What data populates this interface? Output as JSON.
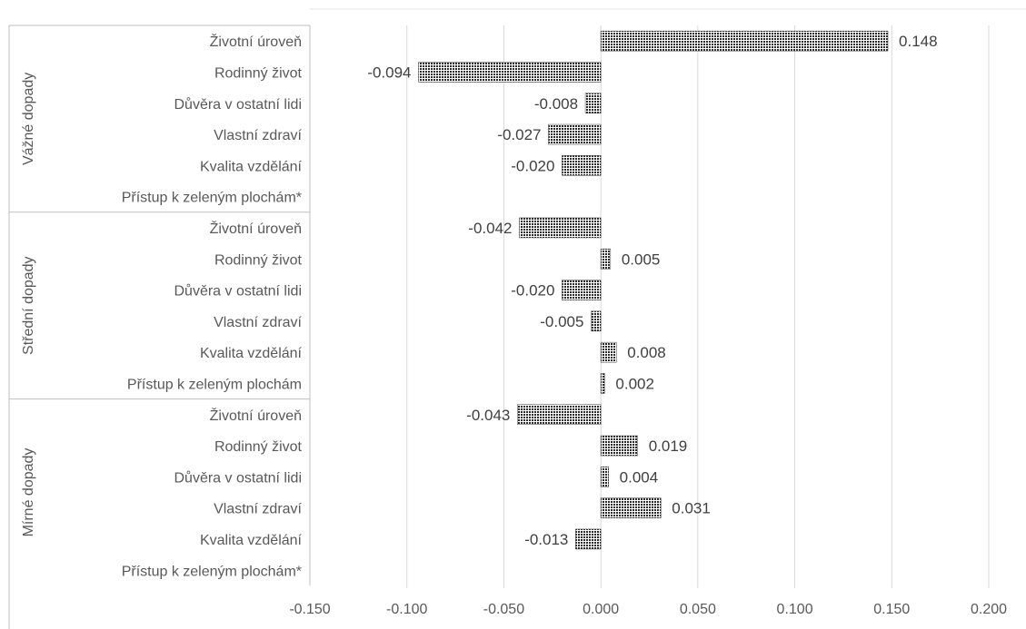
{
  "chart_data": {
    "type": "bar",
    "orientation": "horizontal",
    "groups": [
      {
        "name": "Vážné dopady",
        "categories": [
          "Životní úroveň",
          "Rodinný život",
          "Důvěra v ostatní lidi",
          "Vlastní zdraví",
          "Kvalita vzdělání",
          "Přístup k zeleným plochám*"
        ],
        "values": [
          0.148,
          -0.094,
          -0.008,
          -0.027,
          -0.02,
          null
        ],
        "labels": [
          "0.148",
          "-0.094",
          "-0.008",
          "-0.027",
          "-0.020",
          ""
        ]
      },
      {
        "name": "Střední dopady",
        "categories": [
          "Životní úroveň",
          "Rodinný život",
          "Důvěra v ostatní lidi",
          "Vlastní zdraví",
          "Kvalita vzdělání",
          "Přístup k zeleným plochám"
        ],
        "values": [
          -0.042,
          0.005,
          -0.02,
          -0.005,
          0.008,
          0.002
        ],
        "labels": [
          "-0.042",
          "0.005",
          "-0.020",
          "-0.005",
          "0.008",
          "0.002"
        ]
      },
      {
        "name": "Mírné dopady",
        "categories": [
          "Životní úroveň",
          "Rodinný život",
          "Důvěra v ostatní lidi",
          "Vlastní zdraví",
          "Kvalita vzdělání",
          "Přístup k zeleným plochám*"
        ],
        "values": [
          -0.043,
          0.019,
          0.004,
          0.031,
          -0.013,
          null
        ],
        "labels": [
          "-0.043",
          "0.019",
          "0.004",
          "0.031",
          "-0.013",
          ""
        ]
      }
    ],
    "xlim": [
      -0.15,
      0.2
    ],
    "xticks": [
      -0.15,
      -0.1,
      -0.05,
      0,
      0.05,
      0.1,
      0.15,
      0.2
    ],
    "xtick_labels": [
      "-0.150",
      "-0.100",
      "-0.050",
      "0.000",
      "0.050",
      "0.100",
      "0.150",
      "0.200"
    ],
    "grid": "vertical",
    "bar_pattern": "dotted-dark",
    "colors": {
      "bar_dark": "#2b2b2b",
      "grid": "#d9d9d9",
      "axis": "#bfbfbf",
      "text": "#595959"
    }
  }
}
